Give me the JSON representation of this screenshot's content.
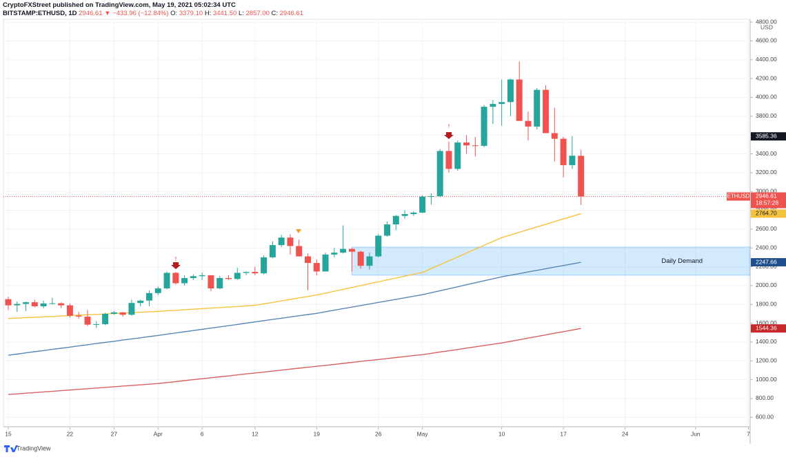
{
  "header": {
    "publisher": "CryptoFXStreet published on TradingView.com, May 19, 2021 05:02:34 UTC",
    "symbol": "BITSTAMP:ETHUSD, 1D",
    "change": "2946.61 ▼ −433.96 (−12.84%)",
    "ohlc": [
      {
        "label": "O:",
        "value": "3379.10"
      },
      {
        "label": "H:",
        "value": "3441.50"
      },
      {
        "label": "L:",
        "value": "2857.00"
      },
      {
        "label": "C:",
        "value": "2946.61"
      }
    ]
  },
  "footer": {
    "brand": "TradingView"
  },
  "chart_data": {
    "type": "candlestick",
    "currency": "USD",
    "up_color": "#26a69a",
    "down_color": "#ef5350",
    "x": [
      "2021-03-15",
      "2021-03-16",
      "2021-03-17",
      "2021-03-18",
      "2021-03-19",
      "2021-03-20",
      "2021-03-21",
      "2021-03-22",
      "2021-03-23",
      "2021-03-24",
      "2021-03-25",
      "2021-03-26",
      "2021-03-27",
      "2021-03-28",
      "2021-03-29",
      "2021-03-30",
      "2021-03-31",
      "2021-04-01",
      "2021-04-02",
      "2021-04-03",
      "2021-04-04",
      "2021-04-05",
      "2021-04-06",
      "2021-04-07",
      "2021-04-08",
      "2021-04-09",
      "2021-04-10",
      "2021-04-11",
      "2021-04-12",
      "2021-04-13",
      "2021-04-14",
      "2021-04-15",
      "2021-04-16",
      "2021-04-17",
      "2021-04-18",
      "2021-04-19",
      "2021-04-20",
      "2021-04-21",
      "2021-04-22",
      "2021-04-23",
      "2021-04-24",
      "2021-04-25",
      "2021-04-26",
      "2021-04-27",
      "2021-04-28",
      "2021-04-29",
      "2021-04-30",
      "2021-05-01",
      "2021-05-02",
      "2021-05-03",
      "2021-05-04",
      "2021-05-05",
      "2021-05-06",
      "2021-05-07",
      "2021-05-08",
      "2021-05-09",
      "2021-05-10",
      "2021-05-11",
      "2021-05-12",
      "2021-05-13",
      "2021-05-14",
      "2021-05-15",
      "2021-05-16",
      "2021-05-17",
      "2021-05-18",
      "2021-05-19"
    ],
    "open": [
      1855,
      1790,
      1805,
      1823,
      1780,
      1810,
      1812,
      1790,
      1680,
      1670,
      1585,
      1590,
      1700,
      1715,
      1690,
      1815,
      1840,
      1920,
      1970,
      2135,
      2025,
      2080,
      2100,
      2110,
      1970,
      2080,
      2070,
      2135,
      2145,
      2130,
      2300,
      2430,
      2510,
      2420,
      2310,
      2240,
      2150,
      2330,
      2350,
      2390,
      2360,
      2210,
      2310,
      2530,
      2650,
      2740,
      2760,
      2775,
      2945,
      2950,
      3430,
      3240,
      3520,
      3490,
      3485,
      3900,
      3930,
      3950,
      4190,
      3750,
      3690,
      4080,
      3620,
      3560,
      3280,
      3379.1
    ],
    "high": [
      1880,
      1830,
      1830,
      1850,
      1840,
      1870,
      1820,
      1810,
      1720,
      1740,
      1620,
      1710,
      1730,
      1720,
      1850,
      1850,
      1950,
      1990,
      2150,
      2145,
      2110,
      2120,
      2140,
      2110,
      2100,
      2110,
      2190,
      2150,
      2200,
      2320,
      2470,
      2540,
      2545,
      2490,
      2340,
      2280,
      2350,
      2400,
      2640,
      2400,
      2370,
      2350,
      2550,
      2680,
      2750,
      2800,
      2790,
      2960,
      2980,
      3450,
      3530,
      3540,
      3600,
      3580,
      3920,
      3970,
      4190,
      4200,
      4380,
      3850,
      4100,
      4130,
      3890,
      3580,
      3590,
      3441.5
    ],
    "low": [
      1740,
      1720,
      1730,
      1770,
      1760,
      1800,
      1760,
      1660,
      1650,
      1570,
      1550,
      1580,
      1690,
      1670,
      1680,
      1780,
      1780,
      1900,
      1960,
      2010,
      2000,
      2060,
      2060,
      1940,
      1960,
      2060,
      2060,
      2110,
      2110,
      2120,
      2290,
      2410,
      2330,
      2310,
      1950,
      2110,
      2150,
      2300,
      2340,
      2150,
      2180,
      2170,
      2300,
      2520,
      2590,
      2710,
      2740,
      2770,
      2860,
      2940,
      3200,
      3220,
      3400,
      3370,
      3470,
      3720,
      3700,
      3800,
      3750,
      3540,
      3660,
      3620,
      3320,
      3150,
      3240,
      2857
    ],
    "close": [
      1790,
      1805,
      1823,
      1780,
      1810,
      1812,
      1790,
      1680,
      1670,
      1585,
      1590,
      1700,
      1715,
      1690,
      1815,
      1840,
      1920,
      1970,
      2135,
      2025,
      2080,
      2100,
      2110,
      1970,
      2080,
      2070,
      2135,
      2145,
      2130,
      2300,
      2430,
      2510,
      2420,
      2310,
      2240,
      2150,
      2330,
      2350,
      2390,
      2360,
      2210,
      2310,
      2530,
      2650,
      2740,
      2760,
      2775,
      2945,
      2950,
      3430,
      3240,
      3520,
      3490,
      3485,
      3900,
      3930,
      3950,
      4190,
      3750,
      3690,
      4080,
      3620,
      3560,
      3280,
      3380,
      2946.61
    ],
    "series": [
      {
        "color": "#f5c33b",
        "values": [
          1650,
          1654,
          1659,
          1663,
          1668,
          1672,
          1676,
          1681,
          1685,
          1690,
          1694,
          1698,
          1703,
          1707,
          1712,
          1716,
          1721,
          1725,
          1731,
          1737,
          1743,
          1749,
          1755,
          1760,
          1766,
          1772,
          1778,
          1784,
          1790,
          1806,
          1821,
          1837,
          1853,
          1869,
          1884,
          1900,
          1920,
          1940,
          1960,
          1980,
          2000,
          2020,
          2040,
          2060,
          2080,
          2100,
          2120,
          2140,
          2181,
          2222,
          2263,
          2304,
          2346,
          2387,
          2428,
          2469,
          2510,
          2538,
          2566,
          2595,
          2623,
          2651,
          2680,
          2708,
          2736,
          2764.7
        ]
      },
      {
        "color": "#5b86b4",
        "values": [
          1260,
          1272,
          1285,
          1297,
          1309,
          1322,
          1334,
          1346,
          1359,
          1371,
          1384,
          1396,
          1408,
          1421,
          1433,
          1445,
          1458,
          1470,
          1483,
          1496,
          1509,
          1522,
          1535,
          1548,
          1561,
          1574,
          1587,
          1601,
          1614,
          1627,
          1640,
          1653,
          1666,
          1679,
          1692,
          1705,
          1722,
          1738,
          1755,
          1771,
          1788,
          1804,
          1821,
          1837,
          1854,
          1870,
          1887,
          1903,
          1924,
          1945,
          1966,
          1987,
          2009,
          2030,
          2051,
          2072,
          2093,
          2110,
          2127,
          2145,
          2162,
          2179,
          2196,
          2213,
          2230,
          2247.66
        ]
      },
      {
        "color": "#d9605f",
        "values": [
          842,
          849,
          856,
          863,
          870,
          876,
          883,
          890,
          897,
          904,
          911,
          918,
          925,
          932,
          938,
          945,
          952,
          959,
          969,
          979,
          990,
          1000,
          1010,
          1020,
          1030,
          1040,
          1051,
          1061,
          1071,
          1081,
          1091,
          1101,
          1112,
          1122,
          1132,
          1142,
          1152,
          1163,
          1173,
          1183,
          1194,
          1204,
          1214,
          1225,
          1235,
          1245,
          1256,
          1266,
          1280,
          1294,
          1307,
          1321,
          1335,
          1349,
          1362,
          1376,
          1390,
          1407,
          1424,
          1442,
          1459,
          1476,
          1493,
          1510,
          1527,
          1544.36
        ]
      }
    ],
    "zones": [
      {
        "label": "Daily Demand",
        "from": "2021-04-23",
        "low": 2110,
        "high": 2410,
        "color": "#2196f3"
      }
    ],
    "last_price": {
      "name": "ETHUSD",
      "value": 2946.61,
      "countdown": "18:57:28",
      "color": "#ef5350"
    },
    "price_labels": [
      {
        "value": 3585.36,
        "label": "3585.36",
        "color": "#131722"
      },
      {
        "value": 2764.7,
        "label": "2764.70",
        "color": "#f5c33b"
      },
      {
        "value": 2247.66,
        "label": "2247.66",
        "color": "#1e4e8c"
      },
      {
        "value": 1544.36,
        "label": "1544.36",
        "color": "#c62828"
      }
    ],
    "xlim": [
      "2021-03-14",
      "2021-06-09"
    ],
    "ylim": [
      500,
      4830
    ],
    "xticks": [
      {
        "value": "2021-03-15",
        "label": "15"
      },
      {
        "value": "2021-03-22",
        "label": "22"
      },
      {
        "value": "2021-03-27",
        "label": "27"
      },
      {
        "value": "2021-04-01",
        "label": "Apr"
      },
      {
        "value": "2021-04-06",
        "label": "6"
      },
      {
        "value": "2021-04-12",
        "label": "12"
      },
      {
        "value": "2021-04-19",
        "label": "19"
      },
      {
        "value": "2021-04-26",
        "label": "26"
      },
      {
        "value": "2021-05-01",
        "label": "May"
      },
      {
        "value": "2021-05-10",
        "label": "10"
      },
      {
        "value": "2021-05-17",
        "label": "17"
      },
      {
        "value": "2021-05-24",
        "label": "24"
      },
      {
        "value": "2021-06-01",
        "label": "Jun"
      },
      {
        "value": "2021-06-07",
        "label": "7"
      }
    ],
    "yticks": [
      {
        "value": 600,
        "label": "600.00"
      },
      {
        "value": 800,
        "label": "800.00"
      },
      {
        "value": 1000,
        "label": "1000.00"
      },
      {
        "value": 1200,
        "label": "1200.00"
      },
      {
        "value": 1400,
        "label": "1400.00"
      },
      {
        "value": 1600,
        "label": "1600.00"
      },
      {
        "value": 1800,
        "label": "1800.00"
      },
      {
        "value": 2000,
        "label": "2000.00"
      },
      {
        "value": 2200,
        "label": "2200.00"
      },
      {
        "value": 2400,
        "label": "2400.00"
      },
      {
        "value": 2600,
        "label": "2600.00"
      },
      {
        "value": 2800,
        "label": "2800.00"
      },
      {
        "value": 3000,
        "label": "3000.00"
      },
      {
        "value": 3200,
        "label": "3200.00"
      },
      {
        "value": 3400,
        "label": "3400.00"
      },
      {
        "value": 3600,
        "label": "3600.00"
      },
      {
        "value": 3800,
        "label": "3800.00"
      },
      {
        "value": 4000,
        "label": "4000.00"
      },
      {
        "value": 4200,
        "label": "4200.00"
      },
      {
        "value": 4400,
        "label": "4400.00"
      },
      {
        "value": 4600,
        "label": "4600.00"
      },
      {
        "value": 4800,
        "label": "4800.00"
      }
    ],
    "grid": true
  }
}
